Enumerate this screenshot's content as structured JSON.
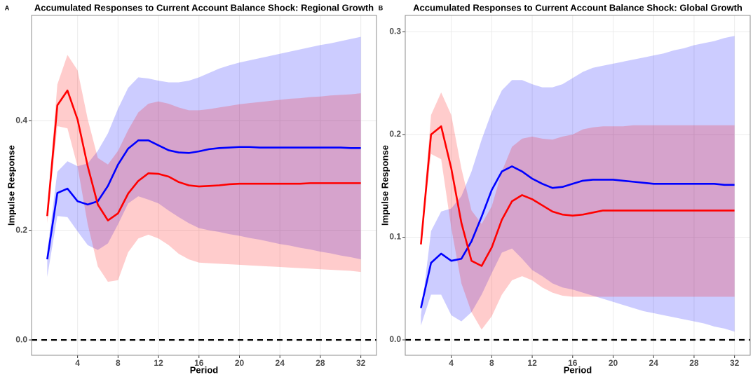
{
  "chart_data": [
    {
      "type": "line",
      "panel": "A",
      "title": "Accumulated Responses to Current Account Balance Shock: Regional Growth",
      "x_label": "Period",
      "y_label": "Impulse Response",
      "x": [
        1,
        2,
        3,
        4,
        5,
        6,
        7,
        8,
        9,
        10,
        11,
        12,
        13,
        14,
        15,
        16,
        17,
        18,
        19,
        20,
        21,
        22,
        23,
        24,
        25,
        26,
        27,
        28,
        29,
        30,
        31,
        32
      ],
      "xlim": [
        -0.55,
        33.55
      ],
      "xticks": [
        4,
        8,
        12,
        16,
        20,
        24,
        28,
        32
      ],
      "ylim": [
        -0.028,
        0.592
      ],
      "yticks": [
        {
          "value": 0,
          "label": "0.0"
        },
        0.2,
        0.4
      ],
      "grid": true,
      "reference_line": 0,
      "reference_style": "dashed",
      "series": [
        {
          "color": "#0000ff",
          "values": [
            0.147,
            0.268,
            0.276,
            0.253,
            0.247,
            0.253,
            0.281,
            0.32,
            0.349,
            0.364,
            0.364,
            0.355,
            0.346,
            0.342,
            0.341,
            0.344,
            0.348,
            0.35,
            0.351,
            0.352,
            0.352,
            0.351,
            0.351,
            0.351,
            0.351,
            0.351,
            0.351,
            0.351,
            0.351,
            0.351,
            0.35,
            0.35
          ],
          "lower": [
            0.115,
            0.226,
            0.224,
            0.198,
            0.173,
            0.164,
            0.176,
            0.211,
            0.249,
            0.262,
            0.256,
            0.249,
            0.236,
            0.224,
            0.213,
            0.204,
            0.2,
            0.197,
            0.193,
            0.19,
            0.186,
            0.183,
            0.179,
            0.175,
            0.172,
            0.168,
            0.165,
            0.161,
            0.158,
            0.154,
            0.151,
            0.147
          ],
          "upper": [
            0.16,
            0.307,
            0.326,
            0.317,
            0.322,
            0.345,
            0.377,
            0.422,
            0.46,
            0.479,
            0.477,
            0.473,
            0.47,
            0.47,
            0.473,
            0.479,
            0.487,
            0.495,
            0.501,
            0.506,
            0.51,
            0.514,
            0.518,
            0.522,
            0.526,
            0.53,
            0.534,
            0.538,
            0.541,
            0.545,
            0.549,
            0.553
          ]
        },
        {
          "color": "#ff0000",
          "values": [
            0.226,
            0.428,
            0.455,
            0.402,
            0.317,
            0.247,
            0.218,
            0.231,
            0.267,
            0.29,
            0.304,
            0.303,
            0.298,
            0.288,
            0.282,
            0.28,
            0.281,
            0.282,
            0.284,
            0.285,
            0.285,
            0.285,
            0.285,
            0.285,
            0.285,
            0.285,
            0.286,
            0.286,
            0.286,
            0.286,
            0.286,
            0.286
          ],
          "lower": [
            0.213,
            0.39,
            0.386,
            0.316,
            0.211,
            0.134,
            0.106,
            0.109,
            0.16,
            0.185,
            0.192,
            0.185,
            0.173,
            0.157,
            0.147,
            0.141,
            0.14,
            0.139,
            0.138,
            0.137,
            0.136,
            0.135,
            0.134,
            0.133,
            0.132,
            0.131,
            0.13,
            0.129,
            0.128,
            0.127,
            0.126,
            0.124
          ],
          "upper": [
            0.236,
            0.466,
            0.52,
            0.492,
            0.403,
            0.332,
            0.32,
            0.345,
            0.383,
            0.415,
            0.431,
            0.435,
            0.431,
            0.424,
            0.419,
            0.419,
            0.421,
            0.424,
            0.427,
            0.43,
            0.432,
            0.434,
            0.436,
            0.438,
            0.44,
            0.441,
            0.443,
            0.444,
            0.446,
            0.447,
            0.448,
            0.45
          ]
        }
      ]
    },
    {
      "type": "line",
      "panel": "B",
      "title": "Accumulated Responses to Current Account Balance Shock: Global Growth",
      "x_label": "Period",
      "y_label": "Impulse Response",
      "x": [
        1,
        2,
        3,
        4,
        5,
        6,
        7,
        8,
        9,
        10,
        11,
        12,
        13,
        14,
        15,
        16,
        17,
        18,
        19,
        20,
        21,
        22,
        23,
        24,
        25,
        26,
        27,
        28,
        29,
        30,
        31,
        32
      ],
      "xlim": [
        -0.55,
        33.55
      ],
      "xticks": [
        4,
        8,
        12,
        16,
        20,
        24,
        28,
        32
      ],
      "ylim": [
        -0.015,
        0.316
      ],
      "yticks": [
        {
          "value": 0,
          "label": "0.0"
        },
        0.1,
        0.2,
        0.3
      ],
      "grid": true,
      "reference_line": 0,
      "reference_style": "dashed",
      "series": [
        {
          "color": "#0000ff",
          "values": [
            0.031,
            0.075,
            0.084,
            0.077,
            0.079,
            0.096,
            0.12,
            0.146,
            0.164,
            0.169,
            0.164,
            0.157,
            0.152,
            0.148,
            0.149,
            0.152,
            0.155,
            0.156,
            0.156,
            0.156,
            0.155,
            0.154,
            0.153,
            0.152,
            0.152,
            0.152,
            0.152,
            0.152,
            0.152,
            0.152,
            0.151,
            0.151
          ],
          "lower": [
            0.014,
            0.044,
            0.044,
            0.024,
            0.018,
            0.027,
            0.044,
            0.065,
            0.085,
            0.089,
            0.079,
            0.068,
            0.062,
            0.055,
            0.051,
            0.049,
            0.046,
            0.043,
            0.04,
            0.037,
            0.034,
            0.031,
            0.028,
            0.026,
            0.024,
            0.022,
            0.02,
            0.018,
            0.016,
            0.013,
            0.011,
            0.008
          ],
          "upper": [
            0.024,
            0.106,
            0.125,
            0.128,
            0.14,
            0.164,
            0.195,
            0.222,
            0.243,
            0.253,
            0.253,
            0.249,
            0.246,
            0.246,
            0.249,
            0.255,
            0.261,
            0.265,
            0.267,
            0.269,
            0.271,
            0.273,
            0.275,
            0.277,
            0.279,
            0.282,
            0.284,
            0.287,
            0.289,
            0.291,
            0.294,
            0.296
          ]
        },
        {
          "color": "#ff0000",
          "values": [
            0.093,
            0.2,
            0.208,
            0.167,
            0.114,
            0.077,
            0.072,
            0.09,
            0.117,
            0.135,
            0.141,
            0.137,
            0.131,
            0.125,
            0.122,
            0.121,
            0.122,
            0.124,
            0.126,
            0.126,
            0.126,
            0.126,
            0.126,
            0.126,
            0.126,
            0.126,
            0.126,
            0.126,
            0.126,
            0.126,
            0.126,
            0.126
          ],
          "lower": [
            0.093,
            0.181,
            0.176,
            0.109,
            0.055,
            0.027,
            0.01,
            0.023,
            0.044,
            0.058,
            0.062,
            0.058,
            0.051,
            0.046,
            0.043,
            0.042,
            0.042,
            0.042,
            0.042,
            0.042,
            0.042,
            0.042,
            0.042,
            0.042,
            0.042,
            0.042,
            0.042,
            0.042,
            0.042,
            0.042,
            0.042,
            0.042
          ],
          "upper": [
            0.096,
            0.219,
            0.241,
            0.219,
            0.167,
            0.126,
            0.113,
            0.13,
            0.164,
            0.188,
            0.196,
            0.198,
            0.196,
            0.195,
            0.198,
            0.2,
            0.205,
            0.207,
            0.208,
            0.208,
            0.208,
            0.209,
            0.209,
            0.209,
            0.209,
            0.209,
            0.209,
            0.209,
            0.209,
            0.209,
            0.209,
            0.209
          ]
        }
      ]
    }
  ]
}
